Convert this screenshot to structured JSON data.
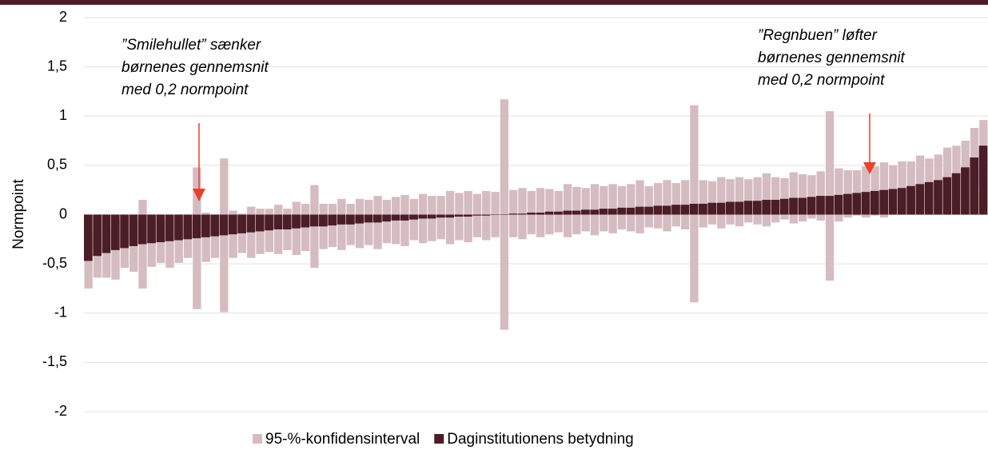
{
  "chart_data": {
    "type": "bar",
    "y_label": "Normpoint",
    "annotations": [
      "”Smilehullet” sænker",
      "børnenes gennemsnit",
      "med 0,2 normpoint",
      "”Regnbuen” løfter",
      "børnenes gennemsnit",
      "med 0,2 normpoint"
    ],
    "ylim": [
      -2,
      2
    ],
    "yticks": [
      -2,
      {
        "value": -1.5,
        "label": "-1,5"
      },
      -1,
      {
        "value": -0.5,
        "label": "-0,5"
      },
      0,
      {
        "value": 0.5,
        "label": "0,5"
      },
      1,
      {
        "value": 1.5,
        "label": "1,5"
      },
      2
    ],
    "series": [
      {
        "name": "95-%-konfidensinterval",
        "color": "#d5bcc0",
        "values": [
          0.28,
          0.22,
          0.25,
          0.3,
          0.2,
          0.26,
          0.45,
          0.24,
          0.21,
          0.27,
          0.23,
          0.19,
          0.72,
          0.25,
          0.22,
          0.78,
          0.24,
          0.2,
          0.26,
          0.23,
          0.22,
          0.25,
          0.21,
          0.27,
          0.24,
          0.42,
          0.23,
          0.22,
          0.26,
          0.21,
          0.25,
          0.23,
          0.27,
          0.22,
          0.24,
          0.26,
          0.21,
          0.25,
          0.23,
          0.22,
          0.27,
          0.24,
          0.26,
          0.22,
          0.25,
          0.23,
          1.17,
          0.24,
          0.26,
          0.22,
          0.25,
          0.23,
          0.21,
          0.27,
          0.24,
          0.22,
          0.26,
          0.23,
          0.25,
          0.22,
          0.24,
          0.27,
          0.21,
          0.23,
          0.26,
          0.22,
          0.25,
          1.0,
          0.24,
          0.22,
          0.26,
          0.23,
          0.25,
          0.22,
          0.24,
          0.27,
          0.23,
          0.21,
          0.26,
          0.24,
          0.22,
          0.25,
          0.86,
          0.27,
          0.24,
          0.23,
          0.26,
          0.25,
          0.28,
          0.24,
          0.27,
          0.25,
          0.29,
          0.24,
          0.26,
          0.3,
          0.28,
          0.27,
          0.3,
          0.26
        ]
      },
      {
        "name": "Daginstitutionens betydning",
        "color": "#4b1d26",
        "values": [
          -0.47,
          -0.42,
          -0.39,
          -0.36,
          -0.34,
          -0.32,
          -0.3,
          -0.29,
          -0.28,
          -0.27,
          -0.26,
          -0.25,
          -0.24,
          -0.23,
          -0.22,
          -0.21,
          -0.2,
          -0.19,
          -0.18,
          -0.17,
          -0.16,
          -0.15,
          -0.15,
          -0.14,
          -0.13,
          -0.12,
          -0.12,
          -0.11,
          -0.1,
          -0.1,
          -0.09,
          -0.08,
          -0.08,
          -0.07,
          -0.06,
          -0.06,
          -0.05,
          -0.04,
          -0.04,
          -0.03,
          -0.03,
          -0.02,
          -0.02,
          -0.01,
          -0.01,
          0.0,
          0.0,
          0.01,
          0.01,
          0.02,
          0.02,
          0.03,
          0.03,
          0.04,
          0.04,
          0.05,
          0.05,
          0.06,
          0.06,
          0.07,
          0.07,
          0.08,
          0.08,
          0.09,
          0.09,
          0.1,
          0.1,
          0.11,
          0.11,
          0.12,
          0.12,
          0.13,
          0.13,
          0.14,
          0.14,
          0.15,
          0.15,
          0.16,
          0.17,
          0.17,
          0.18,
          0.19,
          0.19,
          0.2,
          0.21,
          0.22,
          0.23,
          0.24,
          0.25,
          0.26,
          0.27,
          0.29,
          0.31,
          0.33,
          0.35,
          0.38,
          0.42,
          0.48,
          0.58,
          0.7
        ]
      }
    ]
  }
}
